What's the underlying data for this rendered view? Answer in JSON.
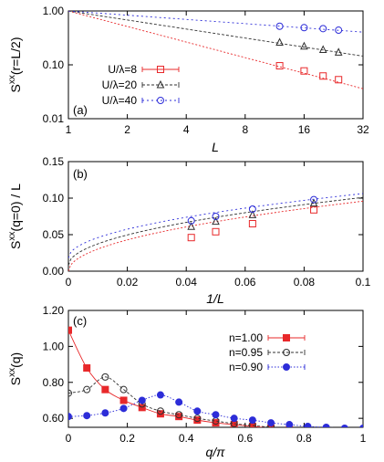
{
  "colors": {
    "red": "#e8282a",
    "dark": "#303030",
    "blue": "#2d2dd8"
  },
  "chart_data": [
    {
      "panel": "(a)",
      "type": "line",
      "xlabel": "L",
      "ylabel": "S^xx(r=L/2)",
      "xscale": "log2",
      "yscale": "log10",
      "xlim": [
        1,
        32
      ],
      "ylim": [
        0.01,
        1.0
      ],
      "xticks": [
        1,
        2,
        4,
        8,
        16,
        32
      ],
      "xticklabels": [
        "1",
        "2",
        "4",
        "8",
        "16",
        "32"
      ],
      "yticks": [
        0.01,
        0.1,
        1.0
      ],
      "yticklabels": [
        "0.01",
        "0.10",
        "1.00"
      ],
      "legend_position": "bottom-left",
      "series": [
        {
          "name": "U/λ=8",
          "color": "#e8282a",
          "marker": "square-open",
          "x": [
            12,
            16,
            20,
            24
          ],
          "y": [
            0.096,
            0.077,
            0.062,
            0.053
          ],
          "fit_x": [
            1,
            32
          ],
          "fit_y": [
            1.0,
            0.036
          ]
        },
        {
          "name": "U/λ=20",
          "color": "#303030",
          "marker": "triangle-open",
          "x": [
            12,
            16,
            20,
            24
          ],
          "y": [
            0.26,
            0.22,
            0.19,
            0.17
          ],
          "fit_x": [
            1,
            32
          ],
          "fit_y": [
            1.0,
            0.145
          ]
        },
        {
          "name": "U/λ=40",
          "color": "#2d2dd8",
          "marker": "circle-open",
          "x": [
            12,
            16,
            20,
            24
          ],
          "y": [
            0.52,
            0.49,
            0.47,
            0.44
          ],
          "fit_x": [
            1,
            32
          ],
          "fit_y": [
            1.0,
            0.405
          ]
        }
      ]
    },
    {
      "panel": "(b)",
      "type": "line",
      "xlabel": "1/L",
      "ylabel": "S^xx(q=0) / L",
      "xlim": [
        0,
        0.1
      ],
      "ylim": [
        0,
        0.15
      ],
      "xticks": [
        0,
        0.02,
        0.04,
        0.06,
        0.08,
        0.1
      ],
      "xticklabels": [
        "0",
        "0.02",
        "0.04",
        "0.06",
        "0.08",
        "0.1"
      ],
      "yticks": [
        0,
        0.05,
        0.1,
        0.15
      ],
      "yticklabels": [
        "0.00",
        "0.05",
        "0.10",
        "0.15"
      ],
      "series": [
        {
          "color": "#e8282a",
          "marker": "square-open",
          "x": [
            0.0417,
            0.05,
            0.0625,
            0.0833
          ],
          "y": [
            0.046,
            0.054,
            0.065,
            0.084
          ],
          "fit": {
            "a": 0.303,
            "p": 0.5,
            "b": 0.0
          }
        },
        {
          "color": "#303030",
          "marker": "triangle-open",
          "x": [
            0.0417,
            0.05,
            0.0625,
            0.0833
          ],
          "y": [
            0.061,
            0.068,
            0.077,
            0.093
          ],
          "fit": {
            "a": 0.294,
            "p": 0.5,
            "b": 0.008
          }
        },
        {
          "color": "#2d2dd8",
          "marker": "circle-open",
          "x": [
            0.0417,
            0.05,
            0.0625,
            0.0833
          ],
          "y": [
            0.069,
            0.075,
            0.085,
            0.098
          ],
          "fit": {
            "a": 0.279,
            "p": 0.5,
            "b": 0.018
          }
        }
      ]
    },
    {
      "panel": "(c)",
      "type": "line",
      "xlabel": "q/π",
      "ylabel": "S^xx(q)",
      "xlim": [
        0,
        1
      ],
      "ylim": [
        0.55,
        1.2
      ],
      "xticks": [
        0,
        0.2,
        0.4,
        0.6,
        0.8,
        1
      ],
      "xticklabels": [
        "0",
        "0.2",
        "0.4",
        "0.6",
        "0.8",
        "1"
      ],
      "yticks": [
        0.6,
        0.8,
        1.0,
        1.2
      ],
      "yticklabels": [
        "0.60",
        "0.80",
        "1.00",
        "1.20"
      ],
      "legend_position": "top-right",
      "series": [
        {
          "name": "n=1.00",
          "color": "#e8282a",
          "marker": "square-filled",
          "line": "solid",
          "x": [
            0,
            0.0625,
            0.125,
            0.1875,
            0.25,
            0.3125,
            0.375,
            0.4375,
            0.5,
            0.5625,
            0.625,
            0.6875,
            0.75,
            0.8125,
            0.875,
            0.9375,
            1.0
          ],
          "y": [
            1.09,
            0.88,
            0.76,
            0.7,
            0.66,
            0.625,
            0.61,
            0.59,
            0.575,
            0.565,
            0.555,
            0.545,
            0.535,
            0.525,
            0.515,
            0.51,
            0.51
          ]
        },
        {
          "name": "n=0.95",
          "color": "#303030",
          "marker": "circle-open",
          "line": "dashed",
          "x": [
            0,
            0.0625,
            0.125,
            0.1875,
            0.25,
            0.3125,
            0.375,
            0.4375,
            0.5,
            0.5625,
            0.625,
            0.6875,
            0.75,
            0.8125,
            0.875,
            0.9375,
            1.0
          ],
          "y": [
            0.74,
            0.76,
            0.83,
            0.76,
            0.68,
            0.64,
            0.62,
            0.6,
            0.585,
            0.57,
            0.56,
            0.55,
            0.54,
            0.53,
            0.525,
            0.52,
            0.52
          ]
        },
        {
          "name": "n=0.90",
          "color": "#2d2dd8",
          "marker": "circle-filled",
          "line": "dotted",
          "x": [
            0,
            0.0625,
            0.125,
            0.1875,
            0.25,
            0.3125,
            0.375,
            0.4375,
            0.5,
            0.5625,
            0.625,
            0.6875,
            0.75,
            0.8125,
            0.875,
            0.9375,
            1.0
          ],
          "y": [
            0.61,
            0.615,
            0.63,
            0.655,
            0.7,
            0.73,
            0.69,
            0.64,
            0.62,
            0.6,
            0.59,
            0.575,
            0.565,
            0.555,
            0.55,
            0.545,
            0.545
          ]
        }
      ]
    }
  ]
}
